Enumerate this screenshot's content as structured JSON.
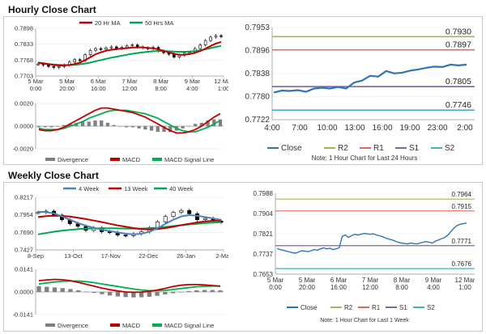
{
  "sections": {
    "hourly_title": "Hourly Close Chart",
    "weekly_title": "Weekly Close Chart"
  },
  "colors": {
    "close": "#2e75b6",
    "r2": "#9bbb59",
    "r1": "#e06666",
    "s1": "#8064a2",
    "s2": "#4bacc6",
    "ma_red": "#c00000",
    "ma_green": "#00a650",
    "ma_blue": "#4f81bd",
    "macd_red": "#c00000",
    "macd_green": "#00b050",
    "divergence": "#808080",
    "candle": "#000000"
  },
  "chart_data": [
    {
      "id": "hourly-candles",
      "type": "line",
      "title": "Hourly Close Chart",
      "y_ticks": [
        "0.7898",
        "0.7833",
        "0.7768",
        "0.7703"
      ],
      "ylim": [
        0.7703,
        0.7898
      ],
      "x_ticks": [
        {
          "line1": "5 Mar",
          "line2": "0:00"
        },
        {
          "line1": "5 Mar",
          "line2": "20:00"
        },
        {
          "line1": "6 Mar",
          "line2": "16:00"
        },
        {
          "line1": "7 Mar",
          "line2": "12:00"
        },
        {
          "line1": "8 Mar",
          "line2": "8:00"
        },
        {
          "line1": "9 Mar",
          "line2": "4:00"
        },
        {
          "line1": "12 Mar",
          "line2": "1:00"
        }
      ],
      "legend": [
        "20 Hr MA",
        "50 Hrs MA"
      ],
      "series": [
        {
          "name": "Close",
          "values": [
            0.7752,
            0.7748,
            0.7742,
            0.7738,
            0.7742,
            0.7748,
            0.776,
            0.777,
            0.7766,
            0.779,
            0.7808,
            0.7815,
            0.7812,
            0.7818,
            0.7822,
            0.7816,
            0.782,
            0.7826,
            0.783,
            0.7822,
            0.7818,
            0.7815,
            0.782,
            0.7806,
            0.7798,
            0.7792,
            0.778,
            0.7788,
            0.7796,
            0.78,
            0.7815,
            0.783,
            0.7848,
            0.7862,
            0.7868,
            0.7864
          ]
        },
        {
          "name": "20 Hr MA",
          "values": [
            0.7758,
            0.7755,
            0.7752,
            0.7748,
            0.7746,
            0.7746,
            0.7748,
            0.7752,
            0.7758,
            0.7768,
            0.778,
            0.7792,
            0.78,
            0.7806,
            0.781,
            0.7813,
            0.7815,
            0.7817,
            0.7819,
            0.782,
            0.782,
            0.7818,
            0.7816,
            0.7812,
            0.7806,
            0.78,
            0.7794,
            0.779,
            0.779,
            0.7793,
            0.7798,
            0.7805,
            0.7815,
            0.7826,
            0.7836,
            0.7842
          ]
        },
        {
          "name": "50 Hrs MA",
          "values": [
            0.7756,
            0.7754,
            0.7752,
            0.775,
            0.7749,
            0.7748,
            0.7748,
            0.7749,
            0.7751,
            0.7754,
            0.7758,
            0.7763,
            0.7768,
            0.7773,
            0.7778,
            0.7782,
            0.7786,
            0.779,
            0.7794,
            0.7797,
            0.78,
            0.7802,
            0.7804,
            0.7805,
            0.7805,
            0.7804,
            0.7803,
            0.7802,
            0.7802,
            0.7803,
            0.7805,
            0.7808,
            0.7812,
            0.7817,
            0.7822,
            0.7826
          ]
        }
      ]
    },
    {
      "id": "hourly-macd",
      "type": "line",
      "y_ticks": [
        "0.0020",
        "0.0000",
        "-0.0020"
      ],
      "ylim": [
        -0.002,
        0.002
      ],
      "legend": [
        "Divergence",
        "MACD",
        "MACD Signal Line"
      ],
      "series": [
        {
          "name": "MACD",
          "values": [
            -0.0003,
            -0.0004,
            -0.0004,
            -0.0003,
            -0.0001,
            0.0002,
            0.0005,
            0.0008,
            0.0011,
            0.0014,
            0.0016,
            0.0016,
            0.0015,
            0.0014,
            0.0013,
            0.0012,
            0.001,
            0.0008,
            0.0005,
            0.0002,
            -0.0001,
            -0.0004,
            -0.0006,
            -0.0006,
            -0.0005,
            -0.0003,
            0.0,
            0.0004,
            0.0008,
            0.0011
          ]
        },
        {
          "name": "MACD Signal Line",
          "values": [
            -0.0002,
            -0.0003,
            -0.0003,
            -0.0003,
            -0.0002,
            0.0,
            0.0002,
            0.0004,
            0.0007,
            0.0009,
            0.0011,
            0.0013,
            0.0014,
            0.0014,
            0.0014,
            0.0013,
            0.0012,
            0.0011,
            0.0009,
            0.0007,
            0.0004,
            0.0001,
            -0.0002,
            -0.0004,
            -0.0005,
            -0.0005,
            -0.0003,
            -0.0001,
            0.0002,
            0.0005
          ]
        },
        {
          "name": "Divergence",
          "values": [
            -0.0001,
            -0.0001,
            -0.0001,
            0.0,
            0.0001,
            0.0002,
            0.0003,
            0.0004,
            0.0004,
            0.0005,
            0.0005,
            0.0003,
            0.0001,
            0.0,
            -0.0001,
            -0.0001,
            -0.0002,
            -0.0003,
            -0.0004,
            -0.0005,
            -0.0005,
            -0.0005,
            -0.0004,
            -0.0002,
            0.0,
            0.0002,
            0.0003,
            0.0005,
            0.0006,
            0.0006
          ]
        }
      ]
    },
    {
      "id": "hourly-pivot",
      "type": "line",
      "y_ticks": [
        "0.7953",
        "0.7896",
        "0.7838",
        "0.7780",
        "0.7722"
      ],
      "ylim": [
        0.7722,
        0.7953
      ],
      "x_ticks": [
        "4:00",
        "7:00",
        "10:00",
        "13:00",
        "16:00",
        "19:00",
        "23:00",
        "2:00"
      ],
      "legend": [
        "Close",
        "R2",
        "R1",
        "S1",
        "S2"
      ],
      "note": "Note: 1 Hour Chart for Last 24 Hours",
      "levels": [
        {
          "name": "R2",
          "value": 0.793,
          "label": "0.7930"
        },
        {
          "name": "R1",
          "value": 0.7897,
          "label": "0.7897"
        },
        {
          "name": "S1",
          "value": 0.7805,
          "label": "0.7805"
        },
        {
          "name": "S2",
          "value": 0.7746,
          "label": "0.7746"
        }
      ],
      "series": [
        {
          "name": "Close",
          "values": [
            0.779,
            0.7795,
            0.7794,
            0.7796,
            0.7792,
            0.78,
            0.7802,
            0.78,
            0.7804,
            0.78,
            0.7815,
            0.782,
            0.7832,
            0.783,
            0.7844,
            0.7838,
            0.784,
            0.7845,
            0.7848,
            0.7852,
            0.7855,
            0.7854,
            0.786,
            0.7858,
            0.786
          ]
        }
      ]
    },
    {
      "id": "weekly-candles",
      "type": "line",
      "title": "Weekly Close Chart",
      "y_ticks": [
        "0.8217",
        "0.7954",
        "0.7690",
        "0.7427"
      ],
      "ylim": [
        0.7427,
        0.8217
      ],
      "x_ticks": [
        "8-Sep",
        "13-Oct",
        "17-Nov",
        "22-Dec",
        "26-Jan",
        "2-Mar"
      ],
      "legend": [
        "4 Week",
        "13 Week",
        "40 Week"
      ],
      "series": [
        {
          "name": "Close",
          "values": [
            0.799,
            0.801,
            0.795,
            0.788,
            0.782,
            0.778,
            0.772,
            0.776,
            0.77,
            0.769,
            0.765,
            0.764,
            0.767,
            0.77,
            0.776,
            0.785,
            0.793,
            0.799,
            0.802,
            0.797,
            0.788,
            0.79,
            0.786,
            0.784
          ]
        },
        {
          "name": "4 Week",
          "values": [
            0.8,
            0.7995,
            0.7975,
            0.793,
            0.788,
            0.783,
            0.779,
            0.776,
            0.773,
            0.771,
            0.769,
            0.767,
            0.766,
            0.767,
            0.77,
            0.775,
            0.782,
            0.788,
            0.793,
            0.795,
            0.794,
            0.792,
            0.79,
            0.788
          ]
        },
        {
          "name": "13 Week",
          "values": [
            0.792,
            0.7935,
            0.794,
            0.7938,
            0.7928,
            0.791,
            0.789,
            0.7868,
            0.7845,
            0.782,
            0.7795,
            0.7775,
            0.7755,
            0.774,
            0.7735,
            0.774,
            0.7755,
            0.7775,
            0.78,
            0.782,
            0.784,
            0.7855,
            0.7865,
            0.787
          ]
        },
        {
          "name": "40 Week",
          "values": [
            0.766,
            0.768,
            0.77,
            0.7715,
            0.7728,
            0.7738,
            0.7745,
            0.775,
            0.7752,
            0.7752,
            0.775,
            0.7748,
            0.7747,
            0.7748,
            0.7752,
            0.776,
            0.7772,
            0.7785,
            0.7798,
            0.781,
            0.782,
            0.783,
            0.7838,
            0.7845
          ]
        }
      ]
    },
    {
      "id": "weekly-macd",
      "type": "line",
      "y_ticks": [
        "0.0141",
        "0.0000",
        "-0.0141"
      ],
      "ylim": [
        -0.0141,
        0.0141
      ],
      "legend": [
        "Divergence",
        "MACD",
        "MACD Signal Line"
      ],
      "series": [
        {
          "name": "MACD",
          "values": [
            0.007,
            0.0075,
            0.0078,
            0.0076,
            0.007,
            0.006,
            0.0048,
            0.0036,
            0.0024,
            0.0014,
            0.0006,
            0.0,
            -0.0002,
            -0.0001,
            0.0004,
            0.0012,
            0.0022,
            0.0034,
            0.0042,
            0.0046,
            0.0046,
            0.0044,
            0.004,
            0.0036
          ]
        },
        {
          "name": "MACD Signal Line",
          "values": [
            0.005,
            0.0056,
            0.0062,
            0.0066,
            0.0068,
            0.0068,
            0.0064,
            0.0058,
            0.005,
            0.0042,
            0.0034,
            0.0026,
            0.0018,
            0.0012,
            0.0008,
            0.0008,
            0.001,
            0.0015,
            0.0021,
            0.0027,
            0.0032,
            0.0035,
            0.0037,
            0.0037
          ]
        },
        {
          "name": "Divergence",
          "values": [
            0.0036,
            0.0032,
            0.0028,
            0.0024,
            0.0018,
            0.001,
            0.0002,
            -0.0006,
            -0.0014,
            -0.0022,
            -0.0028,
            -0.0032,
            -0.0034,
            -0.0033,
            -0.003,
            -0.0024,
            -0.0016,
            -0.0008,
            0.0,
            0.0006,
            0.001,
            0.0012,
            0.0012,
            0.001
          ]
        }
      ]
    },
    {
      "id": "weekly-pivot",
      "type": "line",
      "y_ticks": [
        "0.7988",
        "0.7904",
        "0.7821",
        "0.7737",
        "0.7653"
      ],
      "ylim": [
        0.7653,
        0.7988
      ],
      "x_ticks": [
        {
          "line1": "5 Mar",
          "line2": "0:00"
        },
        {
          "line1": "5 Mar",
          "line2": "20:00"
        },
        {
          "line1": "6 Mar",
          "line2": "16:00"
        },
        {
          "line1": "7 Mar",
          "line2": "12:00"
        },
        {
          "line1": "8 Mar",
          "line2": "8:00"
        },
        {
          "line1": "9 Mar",
          "line2": "4:00"
        },
        {
          "line1": "12 Mar",
          "line2": "1:00"
        }
      ],
      "legend": [
        "Close",
        "R2",
        "R1",
        "S1",
        "S2"
      ],
      "note": "Note: 1 Hour Chart for Last 1 Week",
      "levels": [
        {
          "name": "R2",
          "value": 0.7964,
          "label": "0.7964"
        },
        {
          "name": "R1",
          "value": 0.7915,
          "label": "0.7915"
        },
        {
          "name": "S1",
          "value": 0.7771,
          "label": "0.7771"
        },
        {
          "name": "S2",
          "value": 0.7676,
          "label": "0.7676"
        }
      ],
      "series": [
        {
          "name": "Close",
          "values": [
            0.776,
            0.7755,
            0.7752,
            0.7748,
            0.7745,
            0.7742,
            0.774,
            0.7745,
            0.775,
            0.7748,
            0.7746,
            0.775,
            0.7755,
            0.7752,
            0.7758,
            0.7762,
            0.7758,
            0.776,
            0.7755,
            0.7758,
            0.7762,
            0.781,
            0.7815,
            0.7805,
            0.7812,
            0.7818,
            0.7815,
            0.7818,
            0.7822,
            0.782,
            0.7818,
            0.782,
            0.7815,
            0.7812,
            0.7808,
            0.7802,
            0.7798,
            0.7795,
            0.779,
            0.7785,
            0.7782,
            0.778,
            0.7778,
            0.7782,
            0.778,
            0.7778,
            0.7782,
            0.7785,
            0.7788,
            0.7785,
            0.7782,
            0.779,
            0.7795,
            0.78,
            0.7805,
            0.7815,
            0.783,
            0.7845,
            0.7855,
            0.786,
            0.7862,
            0.7865
          ]
        }
      ]
    }
  ]
}
